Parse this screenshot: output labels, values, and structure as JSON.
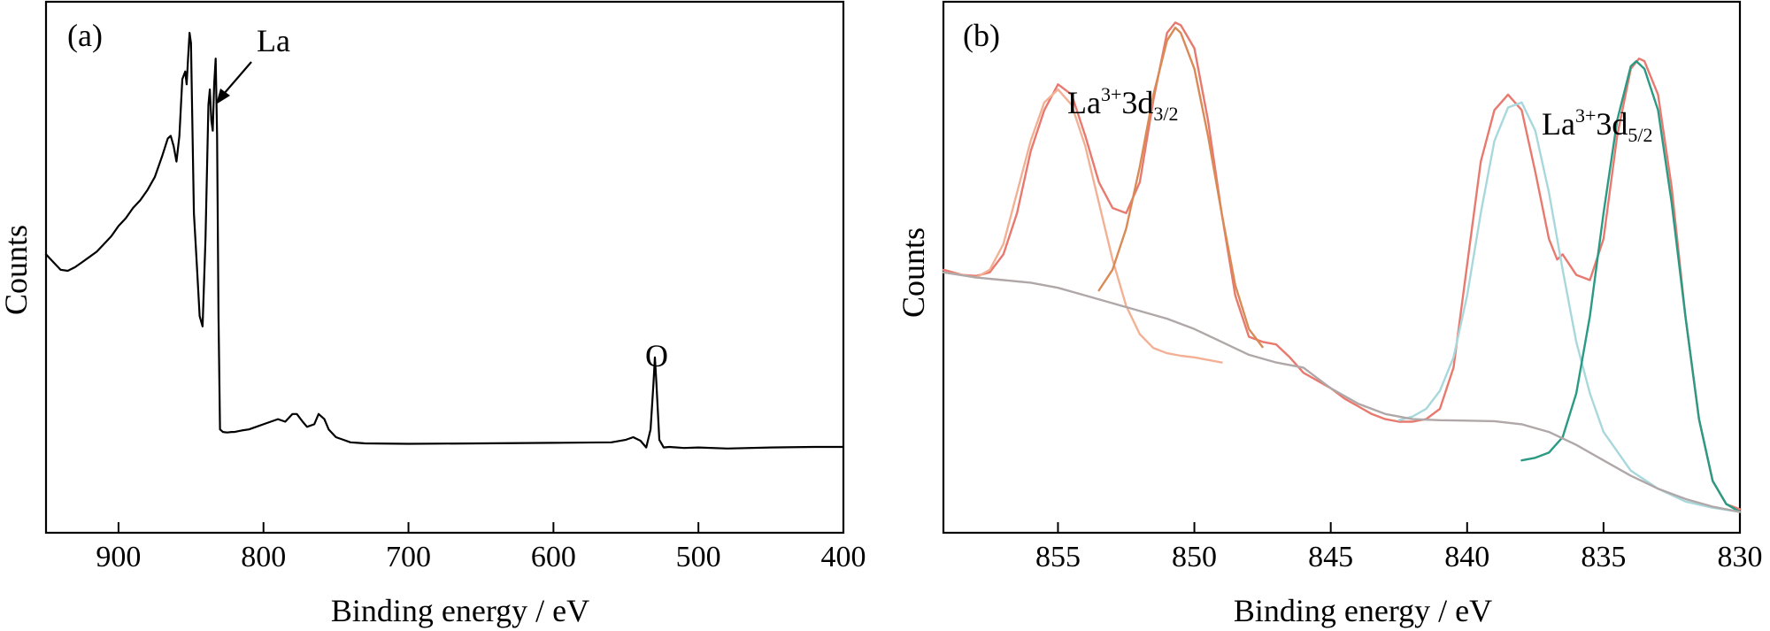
{
  "chart_data": [
    {
      "type": "line",
      "panel": "(a)",
      "xlabel": "Binding energy / eV",
      "ylabel": "Counts",
      "xlim": [
        950,
        400
      ],
      "x_reversed": true,
      "ylim": [
        0,
        100
      ],
      "y_ticks_shown": false,
      "x_ticks": [
        900,
        800,
        700,
        600,
        500,
        400
      ],
      "x_tick_labels": [
        "900",
        "800",
        "700",
        "600",
        "500",
        "400"
      ],
      "annotations": [
        {
          "text": "La",
          "points_to_x": 833
        },
        {
          "text": "O",
          "points_to_x": 530
        }
      ],
      "series": [
        {
          "color": "#000000",
          "x": [
            950,
            945,
            940,
            935,
            930,
            925,
            920,
            915,
            910,
            905,
            900,
            895,
            890,
            885,
            880,
            875,
            870,
            866,
            864,
            862,
            860,
            858,
            856,
            854,
            853,
            852,
            851,
            850,
            848,
            846,
            844,
            842,
            840,
            838,
            837,
            836,
            835,
            834,
            833,
            832,
            831,
            830,
            828,
            825,
            822,
            820,
            815,
            810,
            805,
            800,
            795,
            790,
            785,
            780,
            777,
            773,
            770,
            765,
            762,
            758,
            755,
            750,
            745,
            740,
            735,
            730,
            700,
            650,
            600,
            560,
            550,
            545,
            540,
            536,
            533,
            531,
            530,
            529,
            527,
            524,
            520,
            510,
            500,
            480,
            450,
            420,
            400
          ],
          "y": [
            52,
            50.5,
            49,
            48.8,
            49.5,
            50.5,
            51.5,
            52.5,
            54,
            55.5,
            57.5,
            59,
            61,
            62.5,
            64.5,
            67,
            71,
            74.5,
            75,
            73,
            70,
            75,
            86,
            87.5,
            85,
            90,
            95,
            93,
            60,
            50,
            40,
            38,
            55,
            81,
            84,
            78,
            76,
            85,
            90,
            75,
            40,
            18,
            17.5,
            17.4,
            17.5,
            17.5,
            17.8,
            18.0,
            18.5,
            19.0,
            19.5,
            20.0,
            19.5,
            21.0,
            21.0,
            19.5,
            18.5,
            19.0,
            21.0,
            20.0,
            18.0,
            16.5,
            16.0,
            15.5,
            15.4,
            15.3,
            15.2,
            15.3,
            15.4,
            15.5,
            16.0,
            16.5,
            15.8,
            14.5,
            18.0,
            27.0,
            32.0,
            27.0,
            16.0,
            14.5,
            14.6,
            14.4,
            14.5,
            14.3,
            14.5,
            14.6,
            14.6
          ]
        }
      ]
    },
    {
      "type": "line",
      "panel": "(b)",
      "xlabel": "Binding energy / eV",
      "ylabel": "Counts",
      "xlim": [
        859.2,
        830
      ],
      "x_reversed": true,
      "ylim": [
        0,
        100
      ],
      "y_ticks_shown": false,
      "x_ticks": [
        855,
        850,
        845,
        840,
        835,
        830
      ],
      "x_tick_labels": [
        "855",
        "850",
        "845",
        "840",
        "835",
        "830"
      ],
      "annotations": [
        {
          "text": "La",
          "sup": "3+",
          "mid": "3d",
          "sub": "3/2"
        },
        {
          "text": "La",
          "sup": "3+",
          "mid": "3d",
          "sub": "5/2"
        }
      ],
      "series": [
        {
          "role": "raw spectrum",
          "color": "#e8796f",
          "x": [
            859.2,
            858.5,
            858.0,
            857.5,
            857.0,
            856.5,
            856.0,
            855.5,
            855.0,
            854.5,
            854.0,
            853.5,
            853.0,
            852.5,
            852.0,
            851.5,
            851.0,
            850.7,
            850.5,
            850.0,
            849.5,
            849.0,
            848.5,
            848.0,
            847.5,
            847.0,
            846.5,
            846.0,
            845.5,
            845.0,
            844.5,
            844.0,
            843.5,
            843.0,
            842.5,
            842.0,
            841.5,
            841.0,
            840.5,
            840.0,
            839.5,
            839.0,
            838.5,
            838.0,
            837.5,
            837.0,
            836.7,
            836.5,
            836.0,
            835.5,
            835.0,
            834.5,
            834.0,
            833.7,
            833.5,
            833.0,
            832.5,
            832.0,
            831.5,
            831.0,
            830.5,
            830.0
          ],
          "y": [
            49.0,
            48.0,
            47.8,
            48.5,
            52.0,
            60.0,
            72.0,
            80.0,
            85.0,
            83.0,
            75.0,
            66.0,
            61.0,
            60.0,
            66.0,
            82.0,
            95.0,
            97.0,
            96.5,
            92.0,
            78.0,
            60.0,
            44.0,
            36.0,
            35.0,
            34.5,
            32.0,
            29.0,
            27.5,
            26.0,
            24.0,
            22.5,
            21.0,
            20.0,
            19.5,
            19.5,
            20.0,
            22.0,
            30.0,
            50.0,
            70.0,
            80.0,
            83.0,
            80.0,
            68.0,
            55.0,
            51.0,
            52.0,
            48.0,
            47.0,
            55.0,
            75.0,
            88.0,
            90.0,
            89.5,
            83.0,
            65.0,
            40.0,
            20.0,
            8.0,
            3.5,
            2.5
          ]
        },
        {
          "role": "fitted peak 855.0 eV",
          "color": "#f2b195",
          "x": [
            859.2,
            858.5,
            858.0,
            857.5,
            857.0,
            856.5,
            856.0,
            855.5,
            855.0,
            854.5,
            854.0,
            853.5,
            853.0,
            852.5,
            852.0,
            851.5,
            851.0,
            850.5,
            850.0,
            849.0
          ],
          "y": [
            48.5,
            48.0,
            47.5,
            49.0,
            54.0,
            64.0,
            74.0,
            81.5,
            84.0,
            81.0,
            73.0,
            62.0,
            51.0,
            42.0,
            36.5,
            33.8,
            32.8,
            32.3,
            32.0,
            31.0
          ]
        },
        {
          "role": "fitted peak 850.7 eV",
          "color": "#d98a55",
          "x": [
            853.5,
            853.0,
            852.5,
            852.0,
            851.5,
            851.0,
            850.7,
            850.5,
            850.0,
            849.5,
            849.0,
            848.5,
            848.0,
            847.5
          ],
          "y": [
            45.0,
            49.0,
            57.0,
            69.0,
            83.0,
            93.5,
            96.0,
            95.0,
            88.0,
            75.0,
            60.0,
            46.0,
            37.5,
            34.0
          ]
        },
        {
          "role": "fitted peak 838.0 eV",
          "color": "#a8d8dc",
          "x": [
            842.5,
            842.0,
            841.5,
            841.0,
            840.5,
            840.0,
            839.5,
            839.0,
            838.5,
            838.0,
            837.5,
            837.0,
            836.5,
            836.0,
            835.5,
            835.0,
            834.0,
            833.0,
            832.0,
            831.0,
            830.0
          ],
          "y": [
            19.8,
            20.5,
            22.0,
            25.5,
            32.0,
            44.0,
            60.0,
            74.0,
            80.5,
            81.5,
            76.0,
            64.0,
            49.0,
            35.0,
            25.0,
            17.5,
            10.0,
            6.5,
            4.0,
            2.8,
            2.0
          ]
        },
        {
          "role": "fitted peak 833.8 eV",
          "color": "#2a9a84",
          "x": [
            838.0,
            837.5,
            837.0,
            836.5,
            836.0,
            835.5,
            835.0,
            834.5,
            834.0,
            833.8,
            833.5,
            833.0,
            832.5,
            832.0,
            831.5,
            831.0,
            830.5,
            830.0
          ],
          "y": [
            12.0,
            12.5,
            13.5,
            16.5,
            25.0,
            40.0,
            60.0,
            78.0,
            88.5,
            89.5,
            88.0,
            80.0,
            62.0,
            40.0,
            20.0,
            8.0,
            3.5,
            2.0
          ]
        },
        {
          "role": "background",
          "color": "#b0a8a8",
          "x": [
            859.2,
            858.0,
            857.0,
            856.0,
            855.0,
            854.0,
            853.0,
            852.0,
            851.0,
            850.0,
            849.0,
            848.0,
            847.0,
            846.0,
            845.0,
            844.0,
            843.0,
            842.0,
            841.0,
            840.0,
            839.0,
            838.0,
            837.0,
            836.0,
            835.0,
            834.0,
            833.0,
            832.0,
            831.0,
            830.0
          ],
          "y": [
            48.5,
            47.5,
            47.0,
            46.5,
            45.5,
            44.0,
            42.5,
            41.0,
            39.5,
            37.5,
            35.0,
            32.5,
            31.0,
            30.0,
            26.0,
            23.0,
            21.0,
            20.0,
            19.8,
            19.7,
            19.6,
            19.0,
            17.5,
            15.0,
            12.0,
            9.0,
            6.5,
            4.5,
            3.0,
            2.0
          ]
        }
      ]
    }
  ]
}
